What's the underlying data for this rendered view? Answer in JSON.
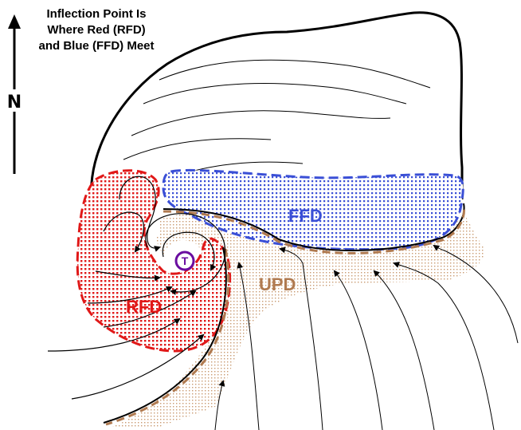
{
  "caption": {
    "lines": [
      "Inflection Point Is",
      "Where Red (RFD)",
      "and Blue (FFD) Meet"
    ]
  },
  "compass": {
    "north_label": "N",
    "arrow_icon": "north-arrow-icon"
  },
  "regions": {
    "ffd": {
      "label": "FFD",
      "color": "#3a4fd6"
    },
    "rfd": {
      "label": "RFD",
      "color": "#e01818"
    },
    "upd": {
      "label": "UPD",
      "color": "#b07a50"
    }
  },
  "tornado": {
    "label": "T",
    "color": "#6a0da0"
  },
  "colors": {
    "outline": "#000000",
    "upd_fill": "#c99a70",
    "boundary_dash": "#b07a50"
  }
}
